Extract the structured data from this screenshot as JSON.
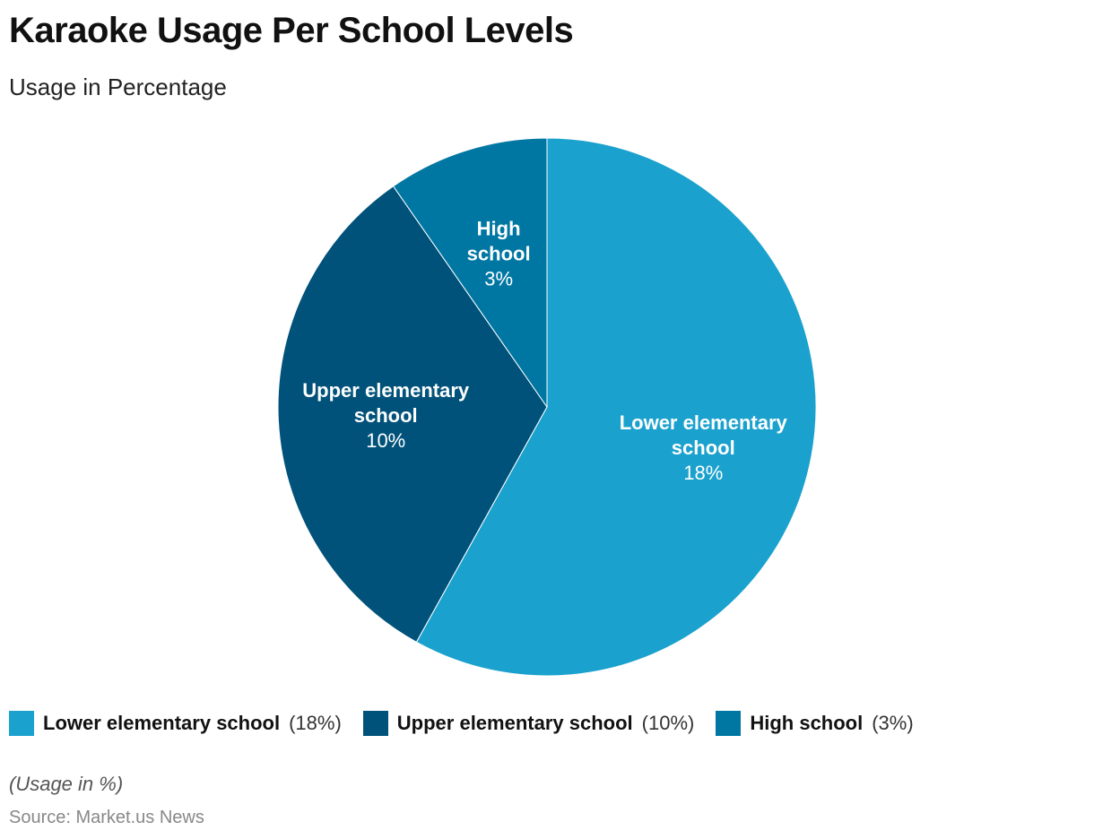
{
  "chart_data": {
    "type": "pie",
    "title": "Karaoke Usage Per School Levels",
    "subtitle": "Usage in Percentage",
    "categories": [
      "Lower elementary school",
      "Upper elementary school",
      "High school"
    ],
    "slice_labels": [
      [
        "Lower elementary",
        "school"
      ],
      [
        "Upper elementary",
        "school"
      ],
      [
        "High",
        "school"
      ]
    ],
    "values": [
      18,
      10,
      3
    ],
    "value_labels": [
      "18%",
      "10%",
      "3%"
    ],
    "legend_values": [
      "(18%)",
      "(10%)",
      "(3%)"
    ],
    "colors": [
      "#1aa1cd",
      "#00527a",
      "#0077a3"
    ],
    "legend_position": "bottom-left",
    "note": "(Usage in %)",
    "source": "Source: Market.us News"
  }
}
